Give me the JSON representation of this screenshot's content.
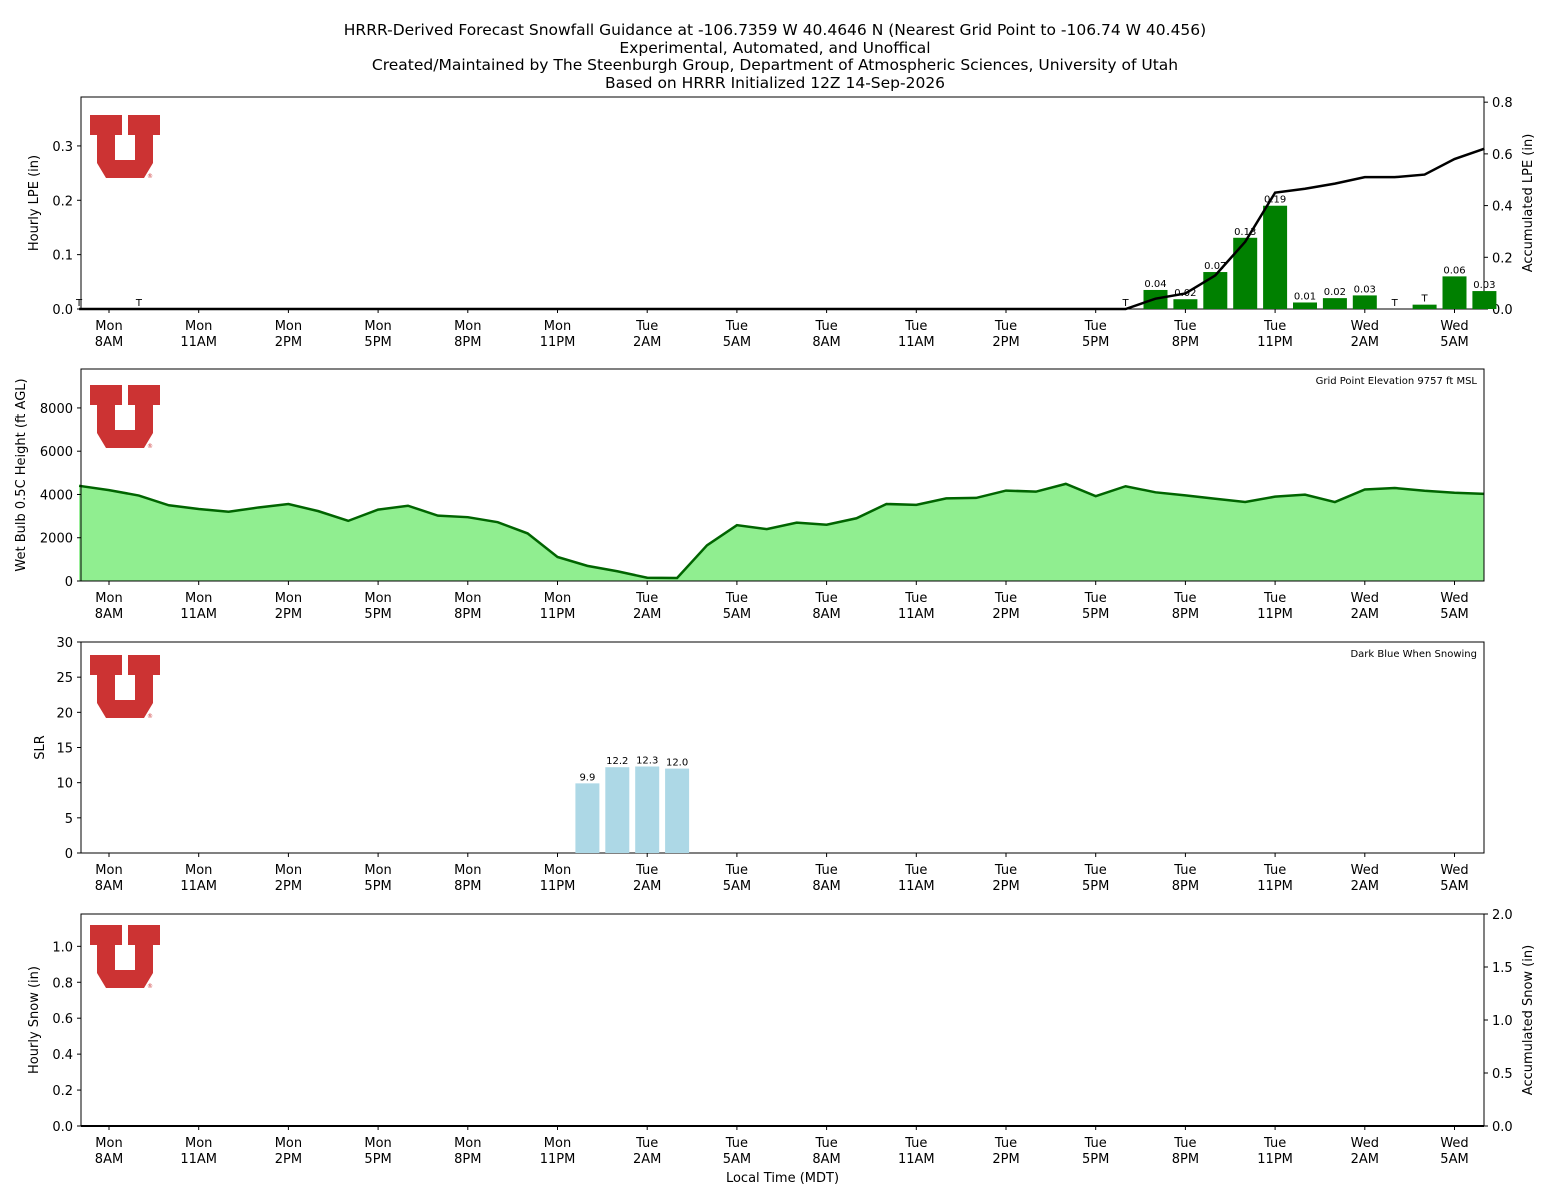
{
  "title_lines": [
    "HRRR-Derived Forecast Snowfall Guidance at -106.7359 W 40.4646 N (Nearest Grid Point to -106.74 W 40.456)",
    "Experimental, Automated, and Unoffical",
    "Created/Maintained by The Steenburgh Group, Department of Atmospheric Sciences, University of Utah",
    "Based on HRRR Initialized 12Z 14-Sep-2026"
  ],
  "colors": {
    "lpe_bar": "#008000",
    "accum_line": "#000000",
    "wetbulb_fill": "#90ee90",
    "wetbulb_line": "#006400",
    "slr_bar": "#add8e6",
    "logo_red": "#cc3333"
  },
  "x_ticks": [
    [
      "Mon",
      "8AM"
    ],
    [
      "Mon",
      "11AM"
    ],
    [
      "Mon",
      "2PM"
    ],
    [
      "Mon",
      "5PM"
    ],
    [
      "Mon",
      "8PM"
    ],
    [
      "Mon",
      "11PM"
    ],
    [
      "Tue",
      "2AM"
    ],
    [
      "Tue",
      "5AM"
    ],
    [
      "Tue",
      "8AM"
    ],
    [
      "Tue",
      "11AM"
    ],
    [
      "Tue",
      "2PM"
    ],
    [
      "Tue",
      "5PM"
    ],
    [
      "Tue",
      "8PM"
    ],
    [
      "Tue",
      "11PM"
    ],
    [
      "Wed",
      "2AM"
    ],
    [
      "Wed",
      "5AM"
    ]
  ],
  "chart_data": [
    {
      "type": "bar",
      "x_unit": "hours since Mon 7AM",
      "x_range": [
        0,
        47
      ],
      "ylabel": "Hourly LPE (in)",
      "y2label": "Accumulated LPE (in)",
      "ylim": [
        0,
        0.39
      ],
      "y2lim": [
        0,
        0.82
      ],
      "yticks": [
        "0.0",
        "0.1",
        "0.2",
        "0.3"
      ],
      "y2ticks": [
        "0.0",
        "0.2",
        "0.4",
        "0.6",
        "0.8"
      ],
      "series": [
        {
          "kind": "bar",
          "points": [
            {
              "x": 36,
              "value": 0.035,
              "label": "0.04"
            },
            {
              "x": 37,
              "value": 0.018,
              "label": "0.02"
            },
            {
              "x": 38,
              "value": 0.068,
              "label": "0.07"
            },
            {
              "x": 39,
              "value": 0.131,
              "label": "0.13"
            },
            {
              "x": 40,
              "value": 0.19,
              "label": "0.19"
            },
            {
              "x": 41,
              "value": 0.012,
              "label": "0.01"
            },
            {
              "x": 42,
              "value": 0.02,
              "label": "0.02"
            },
            {
              "x": 43,
              "value": 0.025,
              "label": "0.03"
            },
            {
              "x": 45,
              "value": 0.008,
              "label": "T"
            },
            {
              "x": 46,
              "value": 0.06,
              "label": "0.06"
            },
            {
              "x": 47,
              "value": 0.033,
              "label": "0.03"
            }
          ],
          "trace_labels": [
            {
              "x": 0,
              "label": "T"
            },
            {
              "x": 2,
              "label": "T"
            },
            {
              "x": 35,
              "label": "T"
            },
            {
              "x": 44,
              "label": "T"
            }
          ]
        },
        {
          "kind": "line",
          "axis": "right",
          "x": [
            0,
            35,
            36,
            37,
            38,
            39,
            40,
            41,
            42,
            43,
            44,
            45,
            46,
            47
          ],
          "y": [
            0,
            0,
            0.04,
            0.06,
            0.13,
            0.26,
            0.45,
            0.465,
            0.485,
            0.51,
            0.51,
            0.52,
            0.58,
            0.62
          ]
        }
      ]
    },
    {
      "type": "area",
      "x_unit": "hours since Mon 7AM",
      "ylabel": "Wet Bulb 0.5C Height (ft AGL)",
      "ylim": [
        0,
        9800
      ],
      "yticks": [
        "0",
        "2000",
        "4000",
        "6000",
        "8000"
      ],
      "annotation": "Grid Point Elevation 9757 ft MSL",
      "x": [
        0,
        1,
        2,
        3,
        4,
        5,
        6,
        7,
        8,
        9,
        10,
        11,
        12,
        13,
        14,
        15,
        16,
        17,
        18,
        19,
        20,
        21,
        22,
        23,
        24,
        25,
        26,
        27,
        28,
        29,
        30,
        31,
        32,
        33,
        34,
        35,
        36,
        37,
        38,
        39,
        40,
        41,
        42,
        43,
        44,
        45,
        46,
        47
      ],
      "values": [
        4400,
        4200,
        3950,
        3500,
        3330,
        3200,
        3400,
        3560,
        3230,
        2780,
        3300,
        3480,
        3020,
        2950,
        2720,
        2200,
        1110,
        700,
        450,
        150,
        140,
        1650,
        2580,
        2400,
        2700,
        2600,
        2900,
        3560,
        3520,
        3820,
        3840,
        4180,
        4130,
        4490,
        3920,
        4380,
        4100,
        3960,
        3800,
        3650,
        3900,
        3990,
        3650,
        4230,
        4300,
        4170,
        4080,
        4030
      ]
    },
    {
      "type": "bar",
      "x_unit": "hours since Mon 7AM",
      "ylabel": "SLR",
      "ylim": [
        0,
        30
      ],
      "yticks": [
        "0",
        "5",
        "10",
        "15",
        "20",
        "25",
        "30"
      ],
      "annotation": "Dark Blue When Snowing",
      "points": [
        {
          "x": 17,
          "value": 9.9,
          "label": "9.9"
        },
        {
          "x": 18,
          "value": 12.2,
          "label": "12.2"
        },
        {
          "x": 19,
          "value": 12.3,
          "label": "12.3"
        },
        {
          "x": 20,
          "value": 12.0,
          "label": "12.0"
        }
      ]
    },
    {
      "type": "bar",
      "x_unit": "hours since Mon 7AM",
      "ylabel": "Hourly Snow (in)",
      "y2label": "Accumulated Snow (in)",
      "xlabel": "Local Time (MDT)",
      "ylim": [
        0,
        1.18
      ],
      "y2lim": [
        0,
        2.0
      ],
      "yticks": [
        "0.0",
        "0.2",
        "0.4",
        "0.6",
        "0.8",
        "1.0"
      ],
      "y2ticks": [
        "0.0",
        "0.5",
        "1.0",
        "1.5",
        "2.0"
      ],
      "points": [],
      "accumulated": 0
    }
  ]
}
